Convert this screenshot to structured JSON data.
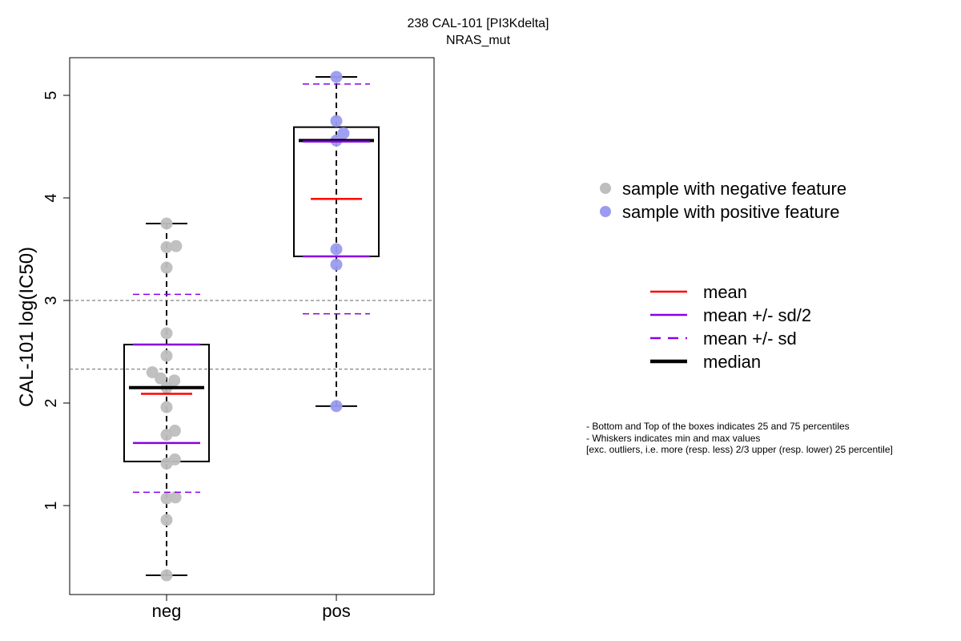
{
  "chart_data": {
    "type": "box",
    "title": "238 CAL-101 [PI3Kdelta]",
    "subtitle": "NRAS_mut",
    "ylabel": "CAL-101 log(IC50)",
    "xlabel": "",
    "ylim": [
      0.2,
      5.4
    ],
    "yticks": [
      1,
      2,
      3,
      4,
      5
    ],
    "categories": [
      "neg",
      "pos"
    ],
    "reference_lines": [
      3.0,
      2.33
    ],
    "groups": [
      {
        "name": "neg",
        "color": "#BEBEBE",
        "q1": 1.43,
        "median": 2.15,
        "q3": 2.57,
        "whisker_low": 0.32,
        "whisker_high": 3.75,
        "mean": 2.09,
        "mean_minus_half_sd": 1.61,
        "mean_plus_half_sd": 2.57,
        "mean_minus_sd": 1.13,
        "mean_plus_sd": 3.06,
        "points": [
          {
            "x": 0,
            "y": 3.75
          },
          {
            "x": 0,
            "y": 3.52
          },
          {
            "x": 0.16,
            "y": 3.53
          },
          {
            "x": 0,
            "y": 3.32
          },
          {
            "x": 0,
            "y": 2.68
          },
          {
            "x": 0,
            "y": 2.46
          },
          {
            "x": -0.24,
            "y": 2.3
          },
          {
            "x": -0.1,
            "y": 2.24
          },
          {
            "x": 0.13,
            "y": 2.22
          },
          {
            "x": 0,
            "y": 2.15
          },
          {
            "x": 0,
            "y": 1.96
          },
          {
            "x": 0.14,
            "y": 1.73
          },
          {
            "x": 0,
            "y": 1.69
          },
          {
            "x": 0.14,
            "y": 1.45
          },
          {
            "x": 0,
            "y": 1.41
          },
          {
            "x": 0,
            "y": 1.07
          },
          {
            "x": 0.15,
            "y": 1.08
          },
          {
            "x": 0,
            "y": 0.86
          },
          {
            "x": 0,
            "y": 0.32
          }
        ]
      },
      {
        "name": "pos",
        "color": "#9B9BF0",
        "q1": 3.43,
        "median": 4.56,
        "q3": 4.69,
        "whisker_low": 1.97,
        "whisker_high": 5.18,
        "mean": 3.99,
        "mean_minus_half_sd": 3.43,
        "mean_plus_half_sd": 4.55,
        "mean_minus_sd": 2.87,
        "mean_plus_sd": 5.11,
        "points": [
          {
            "x": 0,
            "y": 5.18
          },
          {
            "x": 0,
            "y": 4.75
          },
          {
            "x": 0.12,
            "y": 4.63
          },
          {
            "x": 0,
            "y": 4.56
          },
          {
            "x": 0,
            "y": 3.5
          },
          {
            "x": 0,
            "y": 3.35
          },
          {
            "x": 0,
            "y": 1.97
          }
        ]
      }
    ],
    "legend_points": [
      {
        "label": "sample with negative feature",
        "color": "#BEBEBE"
      },
      {
        "label": "sample with positive feature",
        "color": "#9B9BF0"
      }
    ],
    "legend_lines": [
      {
        "label": "mean",
        "color": "#FF0000",
        "style": "solid"
      },
      {
        "label": "mean +/- sd/2",
        "color": "#8A00E6",
        "style": "solid"
      },
      {
        "label": "mean +/- sd",
        "color": "#8A00E6",
        "style": "dashed"
      },
      {
        "label": "median",
        "color": "#000000",
        "style": "bold"
      }
    ],
    "notes": [
      "- Bottom and Top of the boxes indicates 25 and 75 percentiles",
      "- Whiskers indicates min and max values",
      "[exc. outliers, i.e. more (resp. less) 2/3 upper (resp. lower) 25 percentile]"
    ]
  }
}
